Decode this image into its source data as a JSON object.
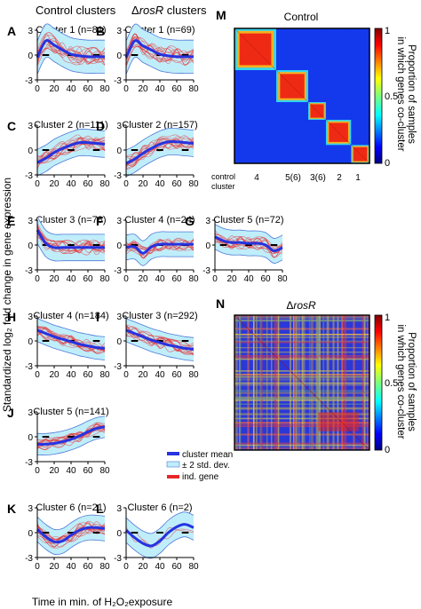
{
  "figure": {
    "header_left": "Control clusters",
    "header_right_prefix": "Δ",
    "header_right_italic": "rosR",
    "header_right_suffix": " clusters",
    "ylabel": "Standardized log₂ fold change in gene expression",
    "xlabel": "Time in min. of H₂O₂exposure",
    "legend": [
      "cluster mean",
      "± 2 std. dev.",
      "ind. gene"
    ],
    "colors": {
      "mean": "#2733e0",
      "band": "#bfeefa",
      "band_edge": "#4f79d6",
      "genes": "#e8262a",
      "dash": "#000000"
    }
  },
  "chart_data": [
    {
      "panel": "A",
      "type": "line",
      "title": "Cluster 1 (n=81)",
      "x": [
        0,
        10,
        20,
        30,
        40,
        50,
        60,
        70,
        80
      ],
      "xlim": [
        0,
        80
      ],
      "ylim": [
        -3,
        3
      ],
      "yticks": [
        -3,
        0,
        3
      ],
      "xticks": [
        0,
        20,
        40,
        60,
        80
      ],
      "mean": [
        -0.3,
        1.7,
        1.2,
        0.6,
        0.1,
        -0.1,
        -0.2,
        -0.2,
        -0.2
      ],
      "band": 2.0,
      "n": 81
    },
    {
      "panel": "B",
      "type": "line",
      "title": "Cluster 1 (n=69)",
      "x": [
        0,
        10,
        20,
        30,
        40,
        50,
        60,
        70,
        80
      ],
      "xlim": [
        0,
        80
      ],
      "ylim": [
        -3,
        3
      ],
      "yticks": [
        -3,
        0,
        3
      ],
      "xticks": [
        0,
        20,
        40,
        60,
        80
      ],
      "mean": [
        -0.3,
        1.7,
        1.1,
        0.6,
        0.1,
        -0.1,
        -0.2,
        -0.2,
        -0.2
      ],
      "band": 2.0,
      "n": 69
    },
    {
      "panel": "C",
      "type": "line",
      "title": "Cluster 2 (n=111)",
      "x": [
        0,
        10,
        20,
        30,
        40,
        50,
        60,
        70,
        80
      ],
      "xlim": [
        0,
        80
      ],
      "ylim": [
        -3,
        3
      ],
      "yticks": [
        -3,
        0,
        3
      ],
      "xticks": [
        0,
        20,
        40,
        60,
        80
      ],
      "mean": [
        -1.5,
        -1.0,
        -0.3,
        0.2,
        0.6,
        0.9,
        0.9,
        0.8,
        0.7
      ],
      "band": 1.6,
      "n": 111
    },
    {
      "panel": "D",
      "type": "line",
      "title": "Cluster 2 (n=157)",
      "x": [
        0,
        10,
        20,
        30,
        40,
        50,
        60,
        70,
        80
      ],
      "xlim": [
        0,
        80
      ],
      "ylim": [
        -3,
        3
      ],
      "yticks": [
        -3,
        0,
        3
      ],
      "xticks": [
        0,
        20,
        40,
        60,
        80
      ],
      "mean": [
        -1.6,
        -1.1,
        -0.4,
        0.2,
        0.7,
        1.0,
        1.0,
        0.9,
        0.8
      ],
      "band": 1.6,
      "n": 157
    },
    {
      "panel": "E",
      "type": "line",
      "title": "Cluster 3 (n=78)",
      "x": [
        0,
        10,
        20,
        30,
        40,
        50,
        60,
        70,
        80
      ],
      "xlim": [
        0,
        80
      ],
      "ylim": [
        -3,
        3
      ],
      "yticks": [
        -3,
        0,
        3
      ],
      "xticks": [
        0,
        20,
        40,
        60,
        80
      ],
      "mean": [
        1.8,
        0.2,
        -0.3,
        -0.3,
        -0.3,
        -0.3,
        -0.3,
        -0.3,
        -0.3
      ],
      "band": 1.6,
      "n": 78
    },
    {
      "panel": "F",
      "type": "line",
      "title": "Cluster 4 (n=24)",
      "x": [
        0,
        10,
        20,
        30,
        40,
        50,
        60,
        70,
        80
      ],
      "xlim": [
        0,
        80
      ],
      "ylim": [
        -3,
        3
      ],
      "yticks": [
        -3,
        0,
        3
      ],
      "xticks": [
        0,
        20,
        40,
        60,
        80
      ],
      "mean": [
        -0.3,
        -0.2,
        -1.0,
        -0.2,
        0.1,
        0.1,
        0.1,
        0.1,
        0.1
      ],
      "band": 1.5,
      "n": 24
    },
    {
      "panel": "G",
      "type": "line",
      "title": "Cluster 5 (n=72)",
      "x": [
        0,
        10,
        20,
        30,
        40,
        50,
        60,
        70,
        80
      ],
      "xlim": [
        0,
        80
      ],
      "ylim": [
        -3,
        3
      ],
      "yticks": [
        -3,
        0,
        3
      ],
      "xticks": [
        0,
        20,
        40,
        60,
        80
      ],
      "mean": [
        1.0,
        0.5,
        0.3,
        0.3,
        0.2,
        0.2,
        0.0,
        -0.7,
        -0.3
      ],
      "band": 1.5,
      "n": 72
    },
    {
      "panel": "H",
      "type": "line",
      "title": "Cluster 4 (n=184)",
      "x": [
        0,
        10,
        20,
        30,
        40,
        50,
        60,
        70,
        80
      ],
      "xlim": [
        0,
        80
      ],
      "ylim": [
        -3,
        3
      ],
      "yticks": [
        -3,
        0,
        3
      ],
      "xticks": [
        0,
        20,
        40,
        60,
        80
      ],
      "mean": [
        1.3,
        0.9,
        0.5,
        0.2,
        -0.1,
        -0.4,
        -0.6,
        -0.8,
        -0.9
      ],
      "band": 1.4,
      "n": 184
    },
    {
      "panel": "I",
      "type": "line",
      "title": "Cluster 3 (n=292)",
      "x": [
        0,
        10,
        20,
        30,
        40,
        50,
        60,
        70,
        80
      ],
      "xlim": [
        0,
        80
      ],
      "ylim": [
        -3,
        3
      ],
      "yticks": [
        -3,
        0,
        3
      ],
      "xticks": [
        0,
        20,
        40,
        60,
        80
      ],
      "mean": [
        1.3,
        0.9,
        0.5,
        0.1,
        -0.2,
        -0.5,
        -0.7,
        -0.9,
        -1.0
      ],
      "band": 1.4,
      "n": 292
    },
    {
      "panel": "J",
      "type": "line",
      "title": "Cluster 5 (n=141)",
      "x": [
        0,
        10,
        20,
        30,
        40,
        50,
        60,
        70,
        80
      ],
      "xlim": [
        0,
        80
      ],
      "ylim": [
        -3,
        3
      ],
      "yticks": [
        -3,
        0,
        3
      ],
      "xticks": [
        0,
        20,
        40,
        60,
        80
      ],
      "mean": [
        -0.9,
        -0.9,
        -0.8,
        -0.6,
        -0.3,
        0.1,
        0.6,
        1.0,
        1.2
      ],
      "band": 1.3,
      "n": 141
    },
    {
      "panel": "K",
      "type": "line",
      "title": "Cluster 6 (n=21)",
      "x": [
        0,
        10,
        20,
        30,
        40,
        50,
        60,
        70,
        80
      ],
      "xlim": [
        0,
        80
      ],
      "ylim": [
        -3,
        3
      ],
      "yticks": [
        -3,
        0,
        3
      ],
      "xticks": [
        0,
        20,
        40,
        60,
        80
      ],
      "mean": [
        0.4,
        -0.5,
        -1.1,
        -1.0,
        -0.3,
        0.3,
        0.6,
        0.6,
        0.5
      ],
      "band": 1.5,
      "n": 21
    },
    {
      "panel": "L",
      "type": "line",
      "title": "Cluster 6 (n=2)",
      "x": [
        0,
        10,
        20,
        30,
        40,
        50,
        60,
        70,
        80
      ],
      "xlim": [
        0,
        80
      ],
      "ylim": [
        -3,
        3
      ],
      "yticks": [
        -3,
        0,
        3
      ],
      "xticks": [
        0,
        20,
        40,
        60,
        80
      ],
      "mean": [
        0.3,
        -0.6,
        -1.3,
        -1.6,
        -1.0,
        0.0,
        0.7,
        1.0,
        0.6
      ],
      "band": 1.5,
      "n": 2
    },
    {
      "panel": "M",
      "type": "heatmap",
      "title": "Control",
      "colorbar_label": "Proportion of samples in which genes co-cluster",
      "colorbar_ticks": [
        "0",
        "0.5",
        "1"
      ],
      "cluster_row_label": "control\ncluster",
      "cluster_labels": [
        "4",
        "5(6)",
        "3(6)",
        "2",
        "1"
      ],
      "block_sizes": [
        184,
        141,
        78,
        111,
        81
      ]
    },
    {
      "panel": "N",
      "type": "heatmap",
      "title_prefix": "Δ",
      "title_italic": "rosR",
      "colorbar_label": "Proportion of samples in which genes co-cluster",
      "colorbar_ticks": [
        "0",
        "0.5",
        "1"
      ]
    }
  ]
}
